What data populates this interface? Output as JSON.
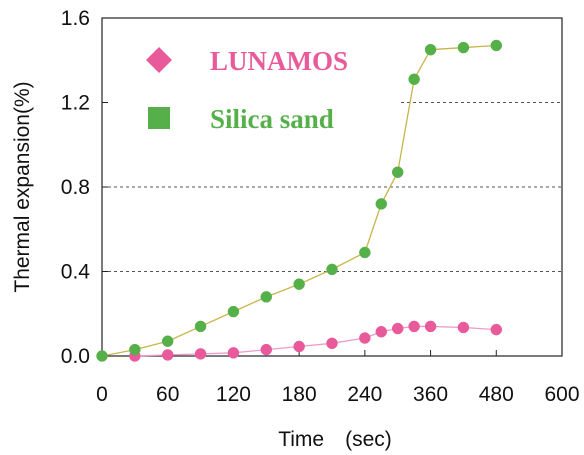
{
  "chart_data": {
    "type": "line",
    "xlabel": "Time　(sec)",
    "ylabel": "Thermal expansion(%)",
    "categories": [
      "0",
      "60",
      "120",
      "180",
      "240",
      "360",
      "480",
      "600"
    ],
    "yticks": [
      "0.0",
      "0.4",
      "0.8",
      "1.2",
      "1.6"
    ],
    "ylim": [
      0,
      1.6
    ],
    "grid": "horizontal dashed",
    "legend_position": "top-left",
    "series": [
      {
        "name": "LUNAMOS",
        "marker": "diamond",
        "color": "#e85a9a",
        "line_color": "#ec9cc8",
        "points": [
          {
            "x": 30,
            "y": 0.0
          },
          {
            "x": 60,
            "y": 0.005
          },
          {
            "x": 90,
            "y": 0.01
          },
          {
            "x": 120,
            "y": 0.015
          },
          {
            "x": 150,
            "y": 0.03
          },
          {
            "x": 180,
            "y": 0.045
          },
          {
            "x": 210,
            "y": 0.06
          },
          {
            "x": 240,
            "y": 0.085
          },
          {
            "x": 270,
            "y": 0.115
          },
          {
            "x": 300,
            "y": 0.13
          },
          {
            "x": 330,
            "y": 0.14
          },
          {
            "x": 360,
            "y": 0.14
          },
          {
            "x": 420,
            "y": 0.135
          },
          {
            "x": 480,
            "y": 0.125
          }
        ]
      },
      {
        "name": "Silica sand",
        "marker": "square",
        "color": "#56b04a",
        "line_color": "#c9b54a",
        "points": [
          {
            "x": 0,
            "y": 0.0
          },
          {
            "x": 30,
            "y": 0.03
          },
          {
            "x": 60,
            "y": 0.07
          },
          {
            "x": 90,
            "y": 0.14
          },
          {
            "x": 120,
            "y": 0.21
          },
          {
            "x": 150,
            "y": 0.28
          },
          {
            "x": 180,
            "y": 0.34
          },
          {
            "x": 210,
            "y": 0.41
          },
          {
            "x": 240,
            "y": 0.49
          },
          {
            "x": 270,
            "y": 0.72
          },
          {
            "x": 300,
            "y": 0.87
          },
          {
            "x": 330,
            "y": 1.31
          },
          {
            "x": 360,
            "y": 1.45
          },
          {
            "x": 420,
            "y": 1.46
          },
          {
            "x": 480,
            "y": 1.47
          }
        ]
      }
    ]
  }
}
